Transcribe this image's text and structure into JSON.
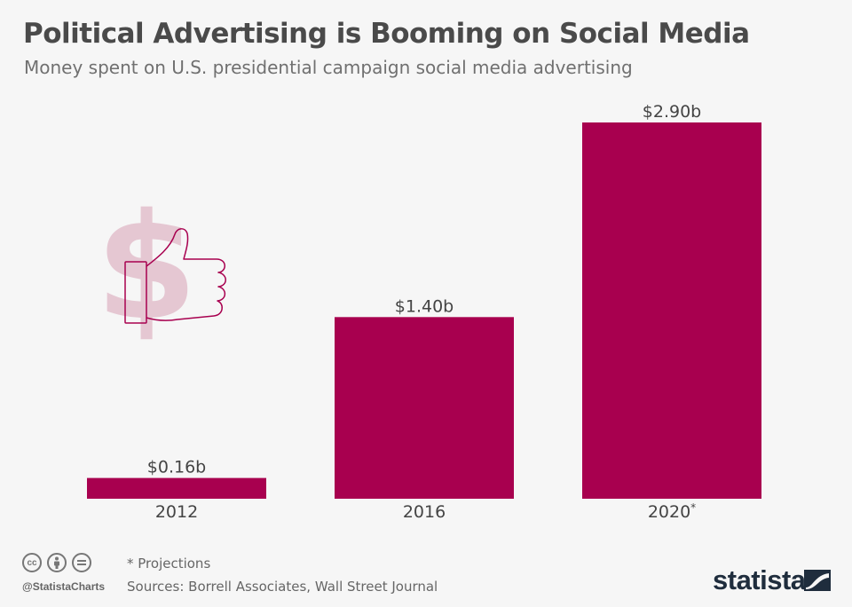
{
  "header": {
    "title": "Political Advertising is Booming on Social Media",
    "subtitle": "Money spent on U.S. presidential campaign social media advertising"
  },
  "chart_data": {
    "type": "bar",
    "categories": [
      "2012",
      "2016",
      "2020"
    ],
    "category_marks": [
      "",
      "",
      "*"
    ],
    "values": [
      0.16,
      1.4,
      2.9
    ],
    "value_labels": [
      "$0.16b",
      "$1.40b",
      "$2.90b"
    ],
    "unit": "billion USD",
    "bar_color": "#a8004f",
    "grid": false,
    "legend": "none"
  },
  "illustration": {
    "icon": "dollar-thumbs-up-icon",
    "dollar_color": "#e5c7d2",
    "outline_color": "#a8004f"
  },
  "footer": {
    "note": "* Projections",
    "source": "Sources: Borrell Associates, Wall Street Journal",
    "handle": "@StatistaCharts",
    "license_icons": [
      "cc-icon",
      "attribution-icon",
      "no-derivatives-icon"
    ],
    "brand": "statista"
  }
}
